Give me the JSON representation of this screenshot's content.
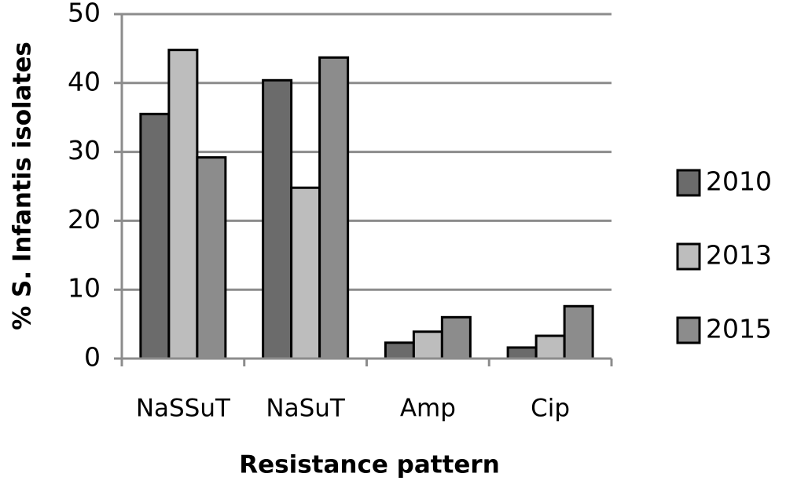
{
  "chart_data": {
    "type": "bar",
    "x_label": "Resistance pattern",
    "y_label": "% S. Infantis isolates",
    "categories": [
      "NaSSuT",
      "NaSuT",
      "Amp",
      "Cip"
    ],
    "series": [
      {
        "name": "2010",
        "color": "#6b6b6b",
        "values": [
          35.5,
          40.4,
          2.3,
          1.6
        ]
      },
      {
        "name": "2013",
        "color": "#bdbdbd",
        "values": [
          44.8,
          24.8,
          3.9,
          3.3
        ]
      },
      {
        "name": "2015",
        "color": "#8c8c8c",
        "values": [
          29.2,
          43.7,
          6.0,
          7.6
        ]
      }
    ],
    "ylim": [
      0,
      50
    ],
    "yticks": [
      0,
      10,
      20,
      30,
      40,
      50
    ],
    "grid": true,
    "legend": "right"
  }
}
